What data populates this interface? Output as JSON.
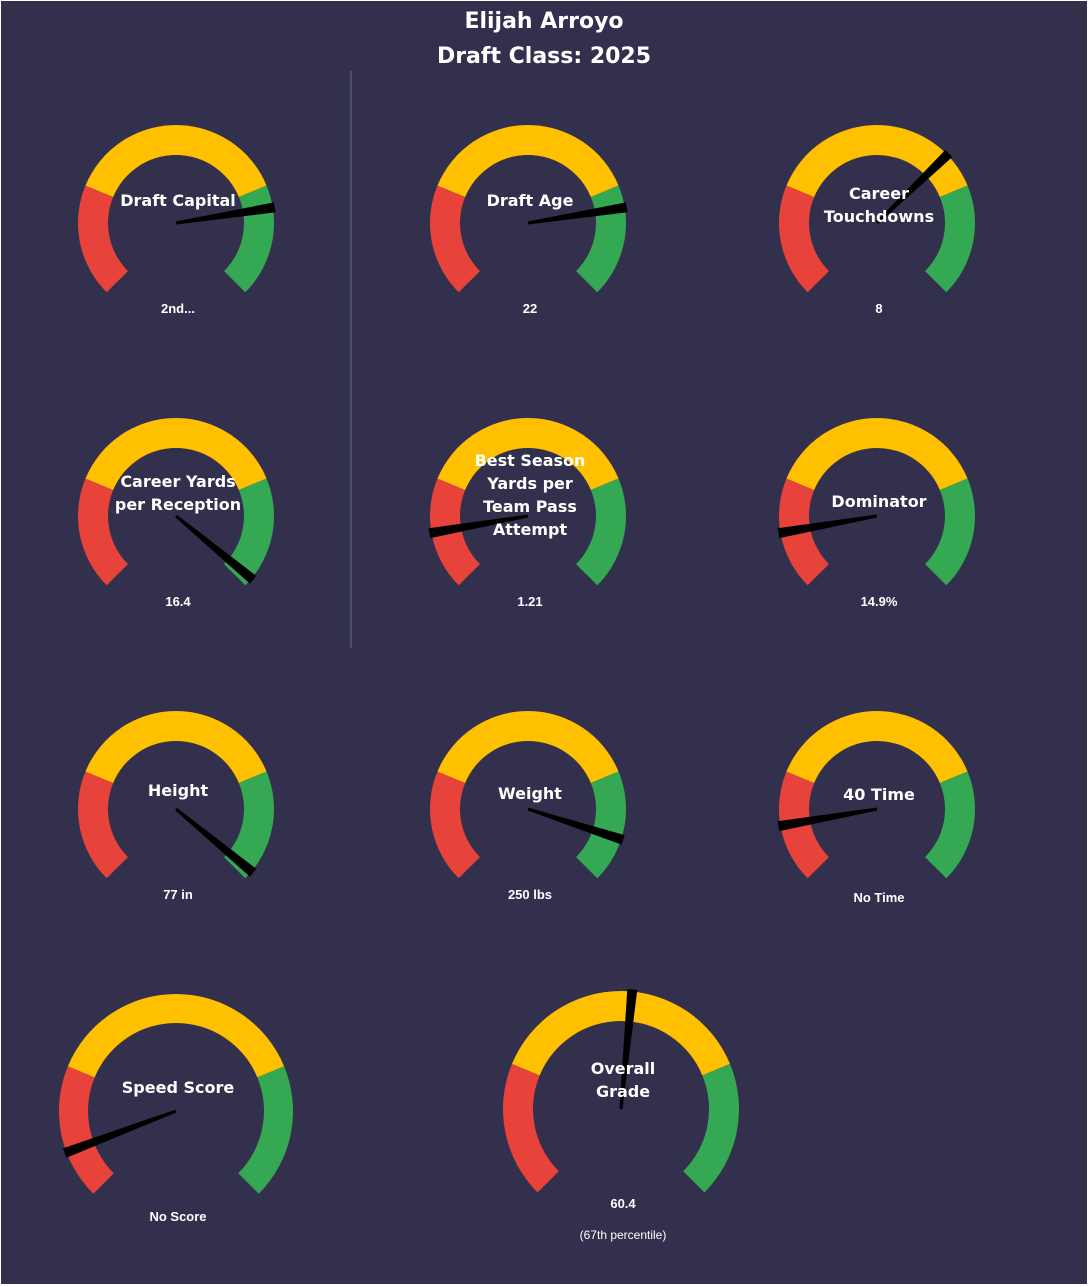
{
  "title": "Elijah Arroyo",
  "subtitle": "Draft Class: 2025",
  "colors": {
    "background": "#32304d",
    "red": "#e8433a",
    "yellow": "#ffc000",
    "green": "#34a853",
    "needle": "#000000",
    "divider": "#6b6a80",
    "text": "#ffffff"
  },
  "chart_data": {
    "type": "gauge",
    "zones": [
      "red",
      "yellow",
      "green"
    ],
    "gauges": [
      {
        "label_lines": [
          "Draft Capital"
        ],
        "value_text": "2nd...",
        "zone_bounds": [
          0.25,
          0.75,
          1
        ],
        "needle": 0.8
      },
      {
        "label_lines": [
          "Draft Age"
        ],
        "value_text": "22",
        "zone_bounds": [
          0.25,
          0.75,
          1
        ],
        "needle": 0.8
      },
      {
        "label_lines": [
          "Career",
          "Touchdowns"
        ],
        "value_text": "8",
        "zone_bounds": [
          0.25,
          0.75,
          1
        ],
        "needle": 0.67
      },
      {
        "label_lines": [
          "Career Yards",
          "per Reception"
        ],
        "value_text": "16.4",
        "zone_bounds": [
          0.25,
          0.75,
          1
        ],
        "needle": 0.98
      },
      {
        "label_lines": [
          "Best Season",
          "Yards per",
          "Team Pass",
          "Attempt"
        ],
        "value_text": "1.21",
        "zone_bounds": [
          0.25,
          0.75,
          1
        ],
        "needle": 0.13
      },
      {
        "label_lines": [
          "Dominator"
        ],
        "value_text": "14.9%",
        "zone_bounds": [
          0.25,
          0.75,
          1
        ],
        "needle": 0.13
      },
      {
        "label_lines": [
          "Height"
        ],
        "value_text": "77 in",
        "zone_bounds": [
          0.25,
          0.75,
          1
        ],
        "needle": 0.98
      },
      {
        "label_lines": [
          "Weight"
        ],
        "value_text": "250 lbs",
        "zone_bounds": [
          0.25,
          0.75,
          1
        ],
        "needle": 0.9
      },
      {
        "label_lines": [
          "40 Time"
        ],
        "value_text": "No Time",
        "zone_bounds": [
          0.25,
          0.75,
          1
        ],
        "needle": 0.13
      },
      {
        "label_lines": [
          "Speed Score"
        ],
        "value_text": "No Score",
        "zone_bounds": [
          0.25,
          0.75,
          1
        ],
        "needle": 0.09
      },
      {
        "label_lines": [
          "Overall",
          "Grade"
        ],
        "value_text": "60.4",
        "sub_text": "(67th  percentile)",
        "zone_bounds": [
          0.25,
          0.75,
          1
        ],
        "needle": 0.52
      }
    ]
  }
}
